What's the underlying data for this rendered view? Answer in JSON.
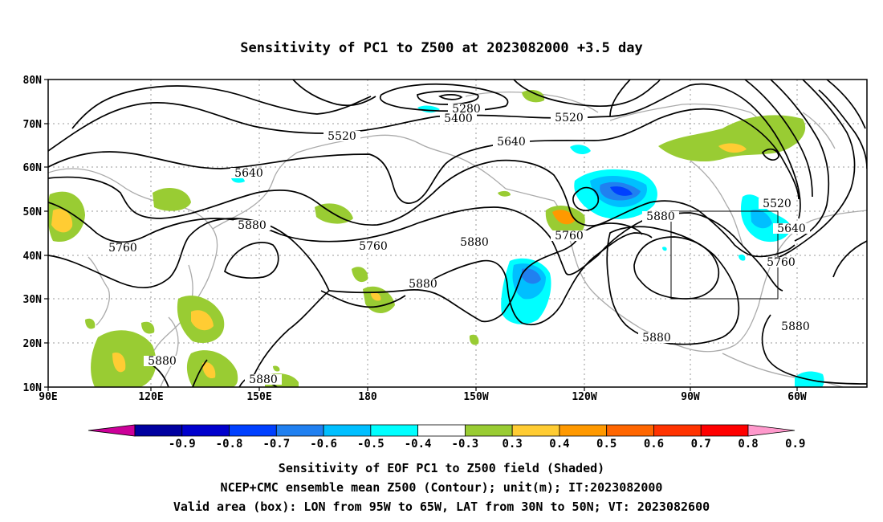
{
  "title": "Sensitivity of PC1 to Z500 at 2023082000 +3.5 day",
  "lat_labels": [
    "80N",
    "70N",
    "60N",
    "50N",
    "40N",
    "30N",
    "20N",
    "10N"
  ],
  "lon_labels": [
    "90E",
    "120E",
    "150E",
    "180",
    "150W",
    "120W",
    "90W",
    "60W"
  ],
  "contour_labels": [
    "5280",
    "5400",
    "5520",
    "5520",
    "5520",
    "5640",
    "5640",
    "5640",
    "5760",
    "5760",
    "5760",
    "5760",
    "5880",
    "5880",
    "5880",
    "5880",
    "5880",
    "5880",
    "5880"
  ],
  "colorbar": {
    "labels": [
      "-0.9",
      "-0.8",
      "-0.7",
      "-0.6",
      "-0.5",
      "-0.4",
      "-0.3",
      "0.3",
      "0.4",
      "0.5",
      "0.6",
      "0.7",
      "0.8",
      "0.9"
    ],
    "colors": [
      "#cc0099",
      "#0000a0",
      "#0000cd",
      "#0040ff",
      "#2080f0",
      "#00bfff",
      "#00ffff",
      "#ffffff",
      "#99cc33",
      "#ffcc33",
      "#ff9900",
      "#ff6600",
      "#ff3300",
      "#ff0000",
      "#ff99cc"
    ]
  },
  "valid_box": {
    "lon_from": "95W",
    "lon_to": "65W",
    "lat_from": "30N",
    "lat_to": "50N"
  },
  "captions": [
    "Sensitivity of EOF PC1 to Z500 field (Shaded)",
    "NCEP+CMC ensemble mean Z500 (Contour); unit(m); IT:2023082000",
    "Valid area (box): LON from 95W to 65W, LAT from 30N to 50N; VT: 2023082600"
  ]
}
